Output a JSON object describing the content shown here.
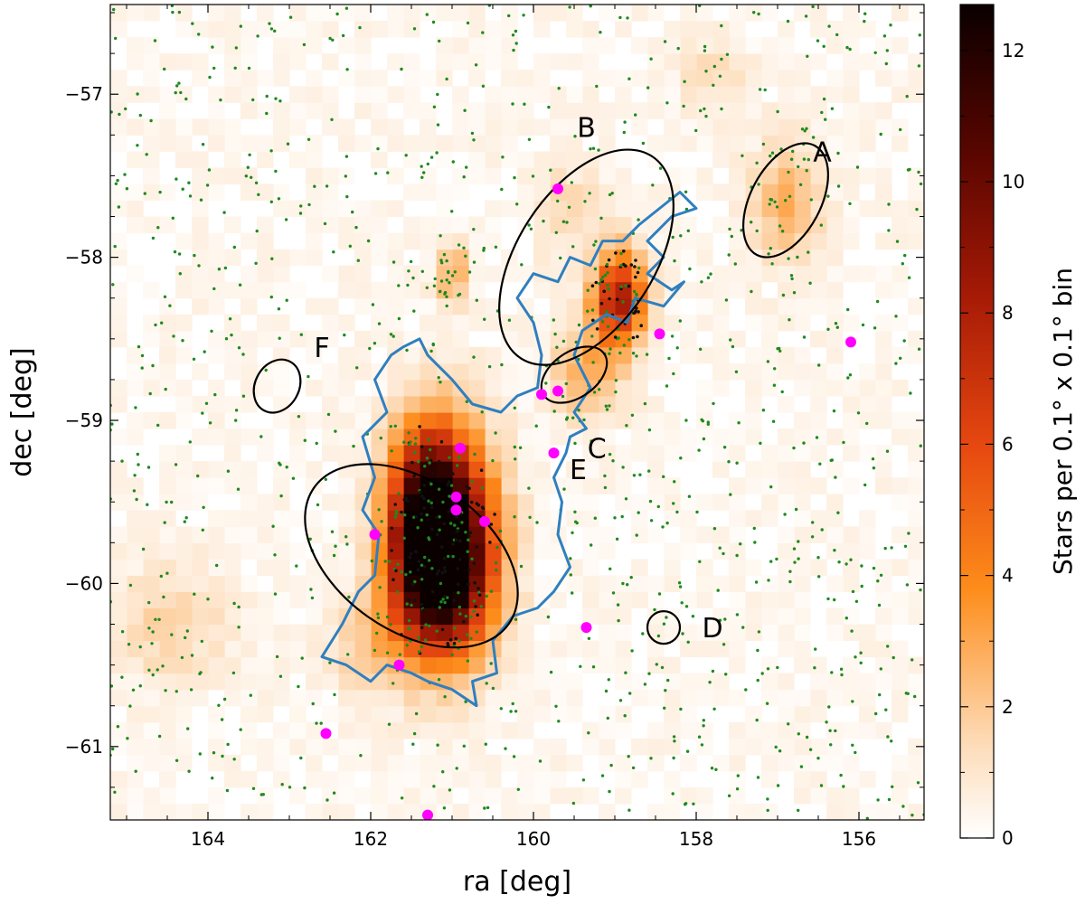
{
  "chart_data": {
    "type": "heatmap",
    "title": "",
    "xlabel": "ra [deg]",
    "ylabel": "dec [deg]",
    "xlim": [
      165.2,
      155.2
    ],
    "ylim": [
      -61.45,
      -56.45
    ],
    "x_ticks": [
      164,
      162,
      160,
      158,
      156
    ],
    "y_ticks": [
      -57,
      -58,
      -59,
      -60,
      -61
    ],
    "colorbar": {
      "label": "Stars per 0.1° x 0.1° bin",
      "range": [
        0,
        12.7
      ],
      "ticks": [
        0,
        2,
        4,
        6,
        8,
        10,
        12
      ],
      "colormap": "gist_heat_r"
    },
    "density_peaks": [
      {
        "ra": 161.1,
        "dec": -59.75,
        "sx": 0.42,
        "sy": 0.42,
        "amp": 12.5
      },
      {
        "ra": 161.3,
        "dec": -59.5,
        "sx": 0.3,
        "sy": 0.35,
        "amp": 6
      },
      {
        "ra": 161.2,
        "dec": -60.0,
        "sx": 0.4,
        "sy": 0.3,
        "amp": 5
      },
      {
        "ra": 158.95,
        "dec": -58.25,
        "sx": 0.22,
        "sy": 0.2,
        "amp": 8
      },
      {
        "ra": 159.35,
        "dec": -58.7,
        "sx": 0.3,
        "sy": 0.22,
        "amp": 2.5
      },
      {
        "ra": 156.9,
        "dec": -57.65,
        "sx": 0.3,
        "sy": 0.25,
        "amp": 2.5
      },
      {
        "ra": 161.0,
        "dec": -58.1,
        "sx": 0.15,
        "sy": 0.13,
        "amp": 2.8
      },
      {
        "ra": 164.5,
        "dec": -60.25,
        "sx": 0.5,
        "sy": 0.25,
        "amp": 1.5
      },
      {
        "ra": 159.6,
        "dec": -57.7,
        "sx": 0.3,
        "sy": 0.2,
        "amp": 1.2
      },
      {
        "ra": 157.8,
        "dec": -56.9,
        "sx": 0.3,
        "sy": 0.2,
        "amp": 1.0
      },
      {
        "ra": 162.0,
        "dec": -60.4,
        "sx": 0.4,
        "sy": 0.2,
        "amp": 1.5
      }
    ],
    "regions": [
      {
        "name": "A",
        "ra": 156.9,
        "dec": -57.65,
        "rx": 0.76,
        "ry": 0.43,
        "angle": 62,
        "label_ra": 156.45,
        "label_dec": -57.35
      },
      {
        "name": "B",
        "ra": 159.35,
        "dec": -58.0,
        "rx": 1.48,
        "ry": 0.84,
        "angle": 57,
        "label_ra": 159.35,
        "label_dec": -57.2
      },
      {
        "name": "C",
        "ra": 159.5,
        "dec": -58.72,
        "rx": 0.45,
        "ry": 0.28,
        "angle": 35,
        "label_ra": 159.22,
        "label_dec": -59.17
      },
      {
        "name": "D",
        "ra": 158.4,
        "dec": -60.27,
        "rx": 0.2,
        "ry": 0.2,
        "angle": 0,
        "label_ra": 157.8,
        "label_dec": -60.27
      },
      {
        "name": "E",
        "ra": 161.5,
        "dec": -59.83,
        "rx": 1.46,
        "ry": 0.92,
        "angle": -35,
        "label_ra": 159.45,
        "label_dec": -59.3
      },
      {
        "name": "F",
        "ra": 163.15,
        "dec": -58.79,
        "rx": 0.34,
        "ry": 0.27,
        "angle": 62,
        "label_ra": 162.6,
        "label_dec": -58.55
      }
    ],
    "magenta_points": [
      {
        "ra": 159.7,
        "dec": -57.58
      },
      {
        "ra": 158.45,
        "dec": -58.47
      },
      {
        "ra": 156.1,
        "dec": -58.52
      },
      {
        "ra": 159.9,
        "dec": -58.84
      },
      {
        "ra": 159.7,
        "dec": -58.82
      },
      {
        "ra": 160.9,
        "dec": -59.17
      },
      {
        "ra": 159.75,
        "dec": -59.2
      },
      {
        "ra": 160.95,
        "dec": -59.47
      },
      {
        "ra": 160.95,
        "dec": -59.55
      },
      {
        "ra": 160.6,
        "dec": -59.62
      },
      {
        "ra": 161.95,
        "dec": -59.7
      },
      {
        "ra": 159.35,
        "dec": -60.27
      },
      {
        "ra": 161.65,
        "dec": -60.5
      },
      {
        "ra": 162.55,
        "dec": -60.92
      },
      {
        "ra": 161.3,
        "dec": -61.42
      }
    ],
    "contour": [
      [
        158.0,
        -57.7
      ],
      [
        158.3,
        -57.75
      ],
      [
        158.6,
        -57.9
      ],
      [
        158.4,
        -58.0
      ],
      [
        158.6,
        -58.1
      ],
      [
        158.3,
        -58.2
      ],
      [
        158.15,
        -58.15
      ],
      [
        158.4,
        -58.3
      ],
      [
        158.75,
        -58.25
      ],
      [
        158.85,
        -58.4
      ],
      [
        159.1,
        -58.35
      ],
      [
        159.4,
        -58.45
      ],
      [
        159.5,
        -58.6
      ],
      [
        159.3,
        -58.8
      ],
      [
        159.5,
        -58.95
      ],
      [
        159.35,
        -59.05
      ],
      [
        159.55,
        -59.1
      ],
      [
        159.6,
        -59.2
      ],
      [
        159.75,
        -59.35
      ],
      [
        159.65,
        -59.5
      ],
      [
        159.7,
        -59.7
      ],
      [
        159.55,
        -59.9
      ],
      [
        159.75,
        -60.05
      ],
      [
        159.95,
        -60.15
      ],
      [
        160.25,
        -60.2
      ],
      [
        160.5,
        -60.35
      ],
      [
        160.45,
        -60.55
      ],
      [
        160.75,
        -60.6
      ],
      [
        160.7,
        -60.75
      ],
      [
        161.0,
        -60.65
      ],
      [
        161.3,
        -60.6
      ],
      [
        161.5,
        -60.55
      ],
      [
        161.8,
        -60.5
      ],
      [
        162.0,
        -60.6
      ],
      [
        162.3,
        -60.5
      ],
      [
        162.6,
        -60.45
      ],
      [
        162.35,
        -60.25
      ],
      [
        162.15,
        -60.05
      ],
      [
        161.95,
        -59.95
      ],
      [
        161.9,
        -59.7
      ],
      [
        162.1,
        -59.55
      ],
      [
        161.95,
        -59.35
      ],
      [
        162.1,
        -59.1
      ],
      [
        161.8,
        -58.95
      ],
      [
        161.95,
        -58.75
      ],
      [
        161.75,
        -58.6
      ],
      [
        161.6,
        -58.55
      ],
      [
        161.4,
        -58.5
      ],
      [
        161.3,
        -58.6
      ],
      [
        161.0,
        -58.75
      ],
      [
        160.75,
        -58.9
      ],
      [
        160.4,
        -58.95
      ],
      [
        160.2,
        -58.85
      ],
      [
        159.95,
        -58.8
      ],
      [
        159.9,
        -58.6
      ],
      [
        160.0,
        -58.4
      ],
      [
        160.2,
        -58.25
      ],
      [
        160.0,
        -58.1
      ],
      [
        159.7,
        -58.15
      ],
      [
        159.55,
        -58.0
      ],
      [
        159.3,
        -58.05
      ],
      [
        159.15,
        -57.9
      ],
      [
        158.9,
        -57.9
      ],
      [
        158.7,
        -57.8
      ],
      [
        158.45,
        -57.7
      ],
      [
        158.2,
        -57.6
      ],
      [
        158.0,
        -57.7
      ]
    ]
  }
}
